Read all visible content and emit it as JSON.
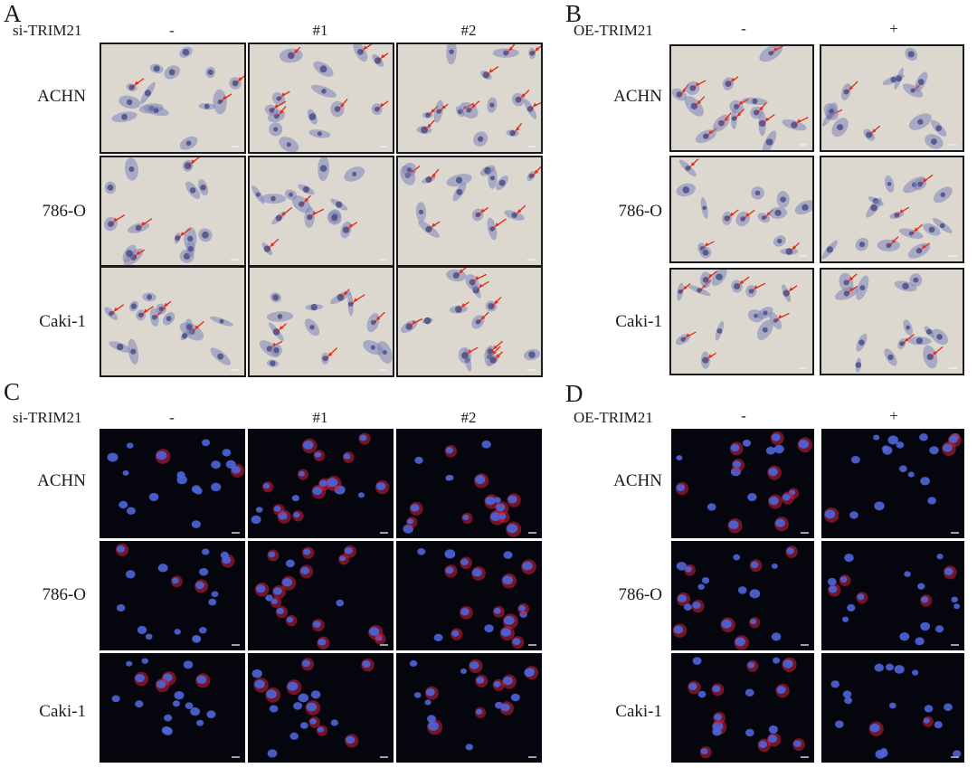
{
  "panels": {
    "A": {
      "letter": "A",
      "factor": "si-TRIM21",
      "stain": "ihc",
      "columns": [
        "-",
        "#1",
        "#2"
      ],
      "rows": [
        "ACHN",
        "786-O",
        "Caki-1"
      ]
    },
    "B": {
      "letter": "B",
      "factor": "OE-TRIM21",
      "stain": "ihc",
      "columns": [
        "-",
        "+"
      ],
      "rows": [
        "ACHN",
        "786-O",
        "Caki-1"
      ]
    },
    "C": {
      "letter": "C",
      "factor": "si-TRIM21",
      "stain": "if",
      "columns": [
        "-",
        "#1",
        "#2"
      ],
      "rows": [
        "ACHN",
        "786-O",
        "Caki-1"
      ]
    },
    "D": {
      "letter": "D",
      "factor": "OE-TRIM21",
      "stain": "if",
      "columns": [
        "-",
        "+"
      ],
      "rows": [
        "ACHN",
        "786-O",
        "Caki-1"
      ]
    }
  },
  "colors": {
    "ihc_background": "#dcd8cf",
    "ihc_cell": "#7d84b8",
    "ihc_nucleus": "#4a4f86",
    "ihc_positive": "#9a3a52",
    "arrow": "#e32f1c",
    "if_background": "#05060d",
    "if_nucleus": "#4d63d6",
    "if_signal": "#d0203a"
  }
}
